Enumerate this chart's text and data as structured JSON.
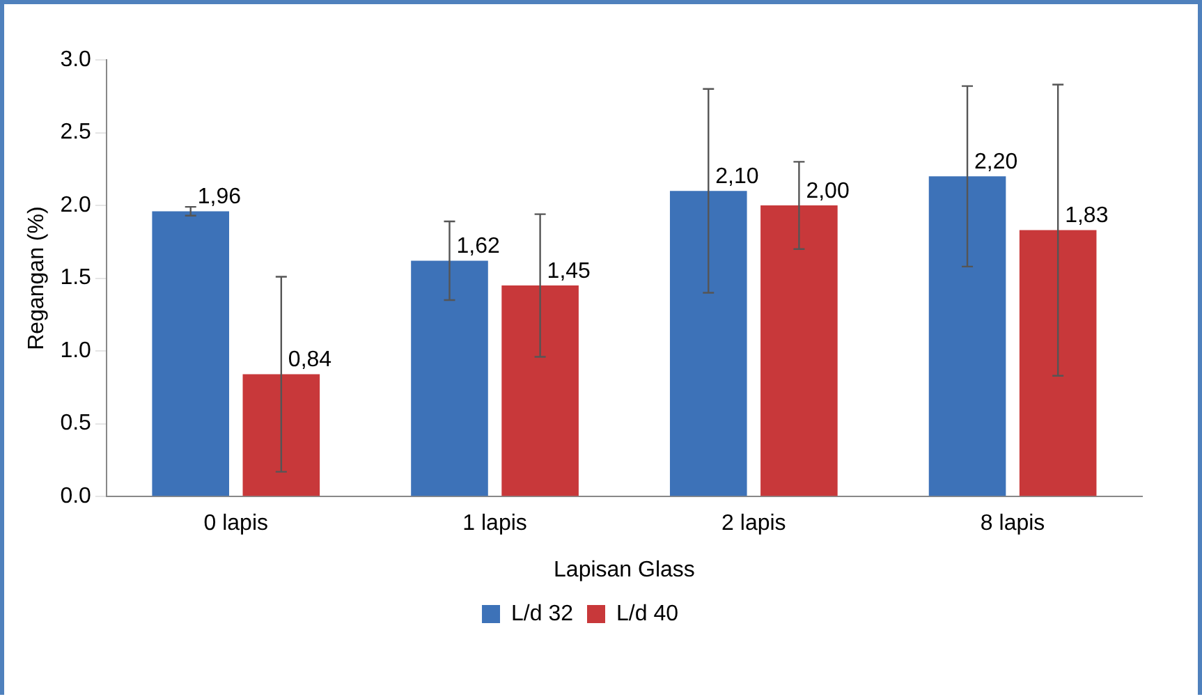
{
  "chart_data": {
    "type": "bar",
    "xlabel": "Lapisan Glass",
    "ylabel": "Regangan (%)",
    "categories": [
      "0 lapis",
      "1 lapis",
      "2 lapis",
      "8 lapis"
    ],
    "series": [
      {
        "name": "L/d 32",
        "color": "#3d72b8",
        "values": [
          1.96,
          1.62,
          2.1,
          2.2
        ],
        "errors": [
          0.03,
          0.27,
          0.7,
          0.62
        ],
        "value_labels": [
          "1,96",
          "1,62",
          "2,10",
          "2,20"
        ]
      },
      {
        "name": "L/d 40",
        "color": "#c8383a",
        "values": [
          0.84,
          1.45,
          2.0,
          1.83
        ],
        "errors": [
          0.67,
          0.49,
          0.3,
          1.0
        ],
        "value_labels": [
          "0,84",
          "1,45",
          "2,00",
          "1,83"
        ]
      }
    ],
    "ylim": [
      0,
      3
    ],
    "yticks": [
      {
        "value": 0,
        "label": "0.0"
      },
      {
        "value": 0.5,
        "label": "0.5"
      },
      {
        "value": 1,
        "label": "1.0"
      },
      {
        "value": 1.5,
        "label": "1.5"
      },
      {
        "value": 2,
        "label": "2.0"
      },
      {
        "value": 2.5,
        "label": "2.5"
      },
      {
        "value": 3,
        "label": "3.0"
      }
    ],
    "grid": false,
    "legend": "bottom"
  }
}
